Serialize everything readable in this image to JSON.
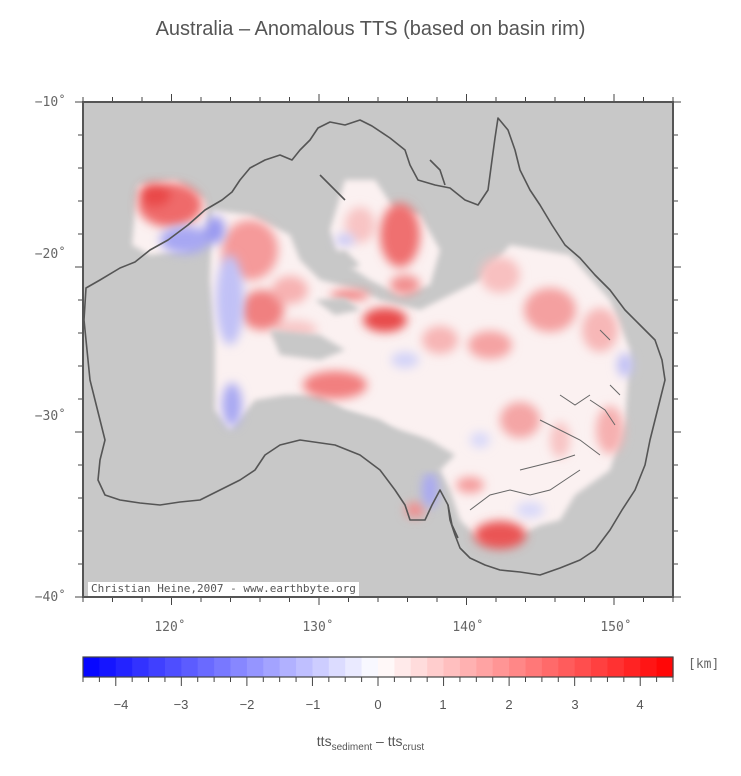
{
  "title": "Australia – Anomalous TTS (based on basin rim)",
  "map": {
    "lat_ticks": [
      "−10˚",
      "−20˚",
      "−30˚",
      "−40˚"
    ],
    "lon_ticks": [
      "120˚",
      "130˚",
      "140˚",
      "150˚"
    ],
    "credit": "Christian Heine,2007 - www.earthbyte.org",
    "colors": {
      "ocean": "#c8c8c8",
      "coast": "#555555",
      "positive": "#ff2a2a",
      "negative": "#2a2aff"
    }
  },
  "colorbar": {
    "tick_labels": [
      "−4",
      "−3",
      "−2",
      "−1",
      "0",
      "1",
      "2",
      "3",
      "4"
    ],
    "unit": "[km]",
    "xaxis_main": "tts",
    "xaxis_sub1": "sediment",
    "xaxis_mid": " – tts",
    "xaxis_sub2": "crust"
  }
}
